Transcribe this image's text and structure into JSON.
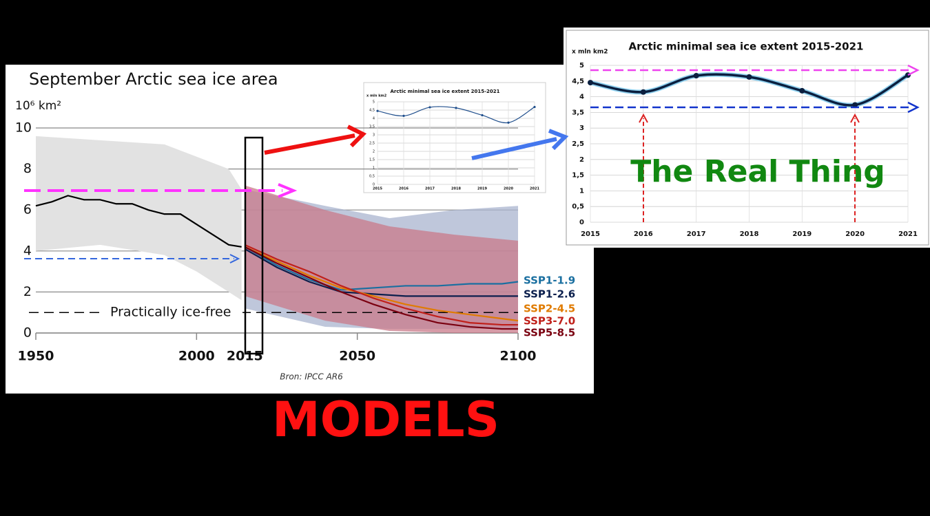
{
  "chart_data": [
    {
      "type": "line",
      "title": "September Arctic sea ice area",
      "y_label": "10⁶ km²",
      "xlim": [
        1950,
        2100
      ],
      "xticks": [
        1950,
        2000,
        2015,
        2050,
        2100
      ],
      "ylim": [
        0,
        10
      ],
      "yticks": [
        0,
        2,
        4,
        6,
        8,
        10
      ],
      "grid": true,
      "ice_free_label": "Practically ice-free",
      "ice_free_level": 1,
      "source": "Bron: IPCC AR6",
      "bands": [
        {
          "color": "#e2e2e2",
          "x": [
            1950,
            1970,
            1990,
            2000,
            2010,
            2014
          ],
          "upper": [
            9.6,
            9.4,
            9.2,
            8.6,
            8.0,
            7.0
          ],
          "lower": [
            4.0,
            4.3,
            3.8,
            3.0,
            2.0,
            1.6
          ]
        },
        {
          "color": "#a9b4cf",
          "x": [
            2015,
            2040,
            2060,
            2080,
            2100
          ],
          "upper": [
            7.0,
            6.2,
            5.6,
            6.0,
            6.2
          ],
          "lower": [
            1.2,
            0.3,
            0.2,
            0.2,
            0.2
          ]
        },
        {
          "color": "#c97a8a",
          "x": [
            2015,
            2040,
            2060,
            2080,
            2100
          ],
          "upper": [
            7.2,
            6.0,
            5.2,
            4.8,
            4.5
          ],
          "lower": [
            1.8,
            0.6,
            0.1,
            0,
            0
          ]
        }
      ],
      "series": [
        {
          "color": "#000000",
          "x": [
            1950,
            1955,
            1960,
            1965,
            1970,
            1975,
            1980,
            1985,
            1990,
            1995,
            2000,
            2005,
            2010,
            2014
          ],
          "values": [
            6.2,
            6.4,
            6.7,
            6.5,
            6.5,
            6.3,
            6.3,
            6.0,
            5.8,
            5.8,
            5.3,
            4.8,
            4.3,
            4.2
          ]
        },
        {
          "name": "SSP1-1.9",
          "color": "#1a6fa0",
          "x": [
            2015,
            2025,
            2035,
            2045,
            2055,
            2065,
            2075,
            2085,
            2095,
            2100
          ],
          "values": [
            4.2,
            3.3,
            2.6,
            2.1,
            2.2,
            2.3,
            2.3,
            2.4,
            2.4,
            2.5
          ]
        },
        {
          "name": "SSP1-2.6",
          "color": "#0b1f4d",
          "x": [
            2015,
            2025,
            2035,
            2045,
            2055,
            2065,
            2075,
            2085,
            2095,
            2100
          ],
          "values": [
            4.1,
            3.2,
            2.5,
            2.0,
            1.9,
            1.8,
            1.8,
            1.8,
            1.8,
            1.8
          ]
        },
        {
          "name": "SSP2-4.5",
          "color": "#e07b00",
          "x": [
            2015,
            2025,
            2035,
            2045,
            2055,
            2065,
            2075,
            2085,
            2095,
            2100
          ],
          "values": [
            4.2,
            3.5,
            2.8,
            2.2,
            1.8,
            1.4,
            1.1,
            0.9,
            0.7,
            0.6
          ]
        },
        {
          "name": "SSP3-7.0",
          "color": "#c0201a",
          "x": [
            2015,
            2025,
            2035,
            2045,
            2055,
            2065,
            2075,
            2085,
            2095,
            2100
          ],
          "values": [
            4.3,
            3.6,
            3.0,
            2.3,
            1.7,
            1.2,
            0.8,
            0.5,
            0.4,
            0.4
          ]
        },
        {
          "name": "SSP5-8.5",
          "color": "#7a0010",
          "x": [
            2015,
            2025,
            2035,
            2045,
            2055,
            2065,
            2075,
            2085,
            2095,
            2100
          ],
          "values": [
            4.2,
            3.4,
            2.7,
            2.0,
            1.4,
            0.9,
            0.5,
            0.3,
            0.2,
            0.2
          ]
        }
      ]
    },
    {
      "type": "line",
      "title": "Arctic minimal sea ice extent 2015-2021",
      "y_label": "x mln km2",
      "categories": [
        "2015",
        "2016",
        "2017",
        "2018",
        "2019",
        "2020",
        "2021"
      ],
      "values": [
        4.45,
        4.15,
        4.67,
        4.63,
        4.19,
        3.74,
        4.69
      ],
      "color": "#1f4e8c",
      "ylim": [
        0,
        5
      ],
      "yticks": [
        0,
        {
          "value": 0.5,
          "label": "0,5"
        },
        1,
        {
          "value": 1.5,
          "label": "1,5"
        },
        2,
        {
          "value": 2.5,
          "label": "2,5"
        },
        3,
        {
          "value": 3.5,
          "label": "3,5"
        },
        4,
        {
          "value": 4.5,
          "label": "4,5"
        },
        5
      ],
      "grid": true
    },
    {
      "type": "line",
      "title": "Arctic minimal sea ice extent 2015-2021",
      "y_label": "x mln km2",
      "categories": [
        "2015",
        "2016",
        "2017",
        "2018",
        "2019",
        "2020",
        "2021"
      ],
      "values": [
        4.45,
        4.15,
        4.67,
        4.63,
        4.19,
        3.74,
        4.69
      ],
      "color": "#0b1f3f",
      "ylim": [
        0,
        5
      ],
      "yticks": [
        0,
        {
          "value": 0.5,
          "label": "0,5"
        },
        1,
        {
          "value": 1.5,
          "label": "1,5"
        },
        2,
        {
          "value": 2.5,
          "label": "2,5"
        },
        3,
        {
          "value": 3.5,
          "label": "3,5"
        },
        4,
        {
          "value": 4.5,
          "label": "4,5"
        },
        5
      ],
      "grid": true
    }
  ],
  "annotations": {
    "real": "The Real Thing",
    "models": "MODELS"
  }
}
